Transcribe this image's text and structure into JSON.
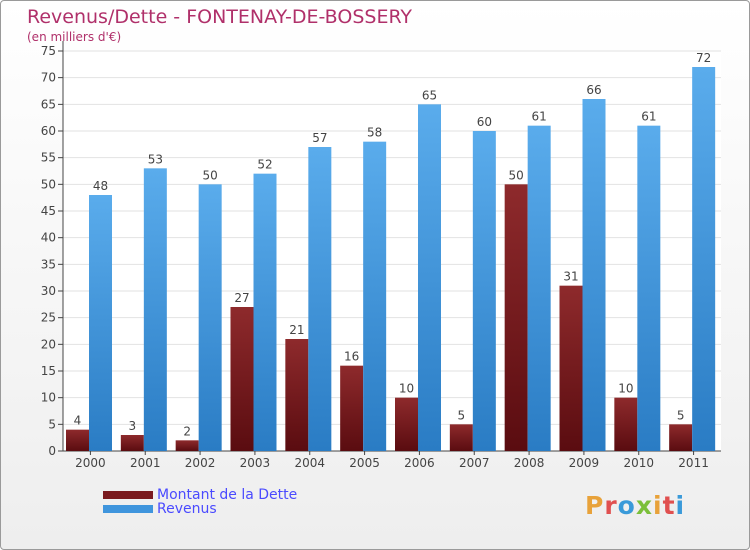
{
  "title": "Revenus/Dette - FONTENAY-DE-BOSSERY",
  "subtitle": "(en milliers d'€)",
  "logo": {
    "text": "Proxiti",
    "colors": [
      "#e8a23a",
      "#e05050",
      "#3a9ad9",
      "#7bbf3a",
      "#e8a23a",
      "#e05050",
      "#3a9ad9"
    ]
  },
  "colors": {
    "debt": "#7a1a1e",
    "revenue": "#3f95dd",
    "title": "#b0306a",
    "legend_text": "#4a4aff"
  },
  "chart_data": {
    "type": "bar",
    "categories": [
      "2000",
      "2001",
      "2002",
      "2003",
      "2004",
      "2005",
      "2006",
      "2007",
      "2008",
      "2009",
      "2010",
      "2011"
    ],
    "series": [
      {
        "name": "Montant de la Dette",
        "values": [
          4,
          3,
          2,
          27,
          21,
          16,
          10,
          5,
          50,
          31,
          10,
          5
        ]
      },
      {
        "name": "Revenus",
        "values": [
          48,
          53,
          50,
          52,
          57,
          58,
          65,
          60,
          61,
          66,
          61,
          72
        ]
      }
    ],
    "yticks": [
      0,
      5,
      10,
      15,
      20,
      25,
      30,
      35,
      40,
      45,
      50,
      55,
      60,
      65,
      70,
      75
    ],
    "ylim": [
      0,
      75
    ],
    "grid": true,
    "data_labels": true,
    "legend": "bottom-left"
  }
}
